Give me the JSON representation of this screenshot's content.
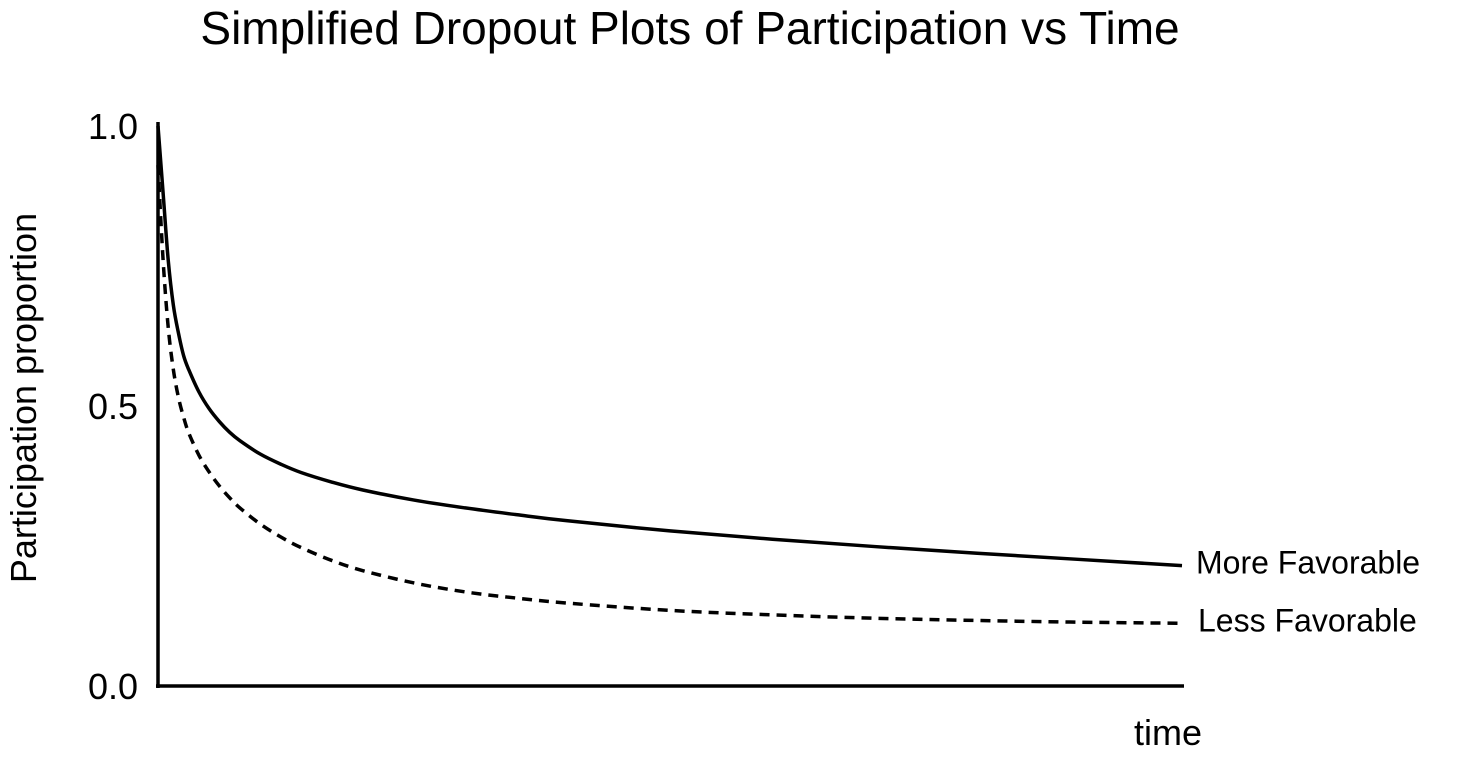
{
  "chart_data": {
    "type": "line",
    "title": "Simplified Dropout Plots of Participation vs Time",
    "xlabel": "time",
    "ylabel": "Participation proportion",
    "ylim": [
      0,
      1
    ],
    "xlim": [
      0,
      100
    ],
    "y_ticks": [
      {
        "value": 0.0,
        "label": "0.0"
      },
      {
        "value": 0.5,
        "label": "0.5"
      },
      {
        "value": 1.0,
        "label": "1.0"
      }
    ],
    "grid": false,
    "legend": "inline labels at right end of lines",
    "series": [
      {
        "name": "More Favorable",
        "style": "solid",
        "color": "#000000",
        "x": [
          0,
          0.5,
          1,
          1.5,
          2,
          2.5,
          3,
          4,
          5,
          6,
          7,
          8,
          10,
          12,
          14,
          17,
          20,
          25,
          30,
          35,
          40,
          50,
          60,
          70,
          80,
          90,
          100
        ],
        "y": [
          1.0,
          0.88,
          0.76,
          0.68,
          0.63,
          0.59,
          0.565,
          0.525,
          0.495,
          0.472,
          0.453,
          0.438,
          0.414,
          0.396,
          0.381,
          0.364,
          0.35,
          0.332,
          0.318,
          0.306,
          0.295,
          0.277,
          0.262,
          0.249,
          0.237,
          0.226,
          0.215
        ]
      },
      {
        "name": "Less Favorable",
        "style": "dashed",
        "color": "#000000",
        "x": [
          0,
          0.5,
          1,
          1.5,
          2,
          2.5,
          3,
          4,
          5,
          6,
          7,
          8,
          10,
          12,
          14,
          17,
          20,
          25,
          30,
          35,
          40,
          50,
          60,
          70,
          80,
          90,
          100
        ],
        "y": [
          0.93,
          0.76,
          0.64,
          0.565,
          0.515,
          0.48,
          0.452,
          0.412,
          0.382,
          0.357,
          0.336,
          0.318,
          0.289,
          0.266,
          0.247,
          0.224,
          0.206,
          0.184,
          0.168,
          0.157,
          0.148,
          0.135,
          0.127,
          0.121,
          0.117,
          0.114,
          0.112
        ]
      }
    ]
  }
}
